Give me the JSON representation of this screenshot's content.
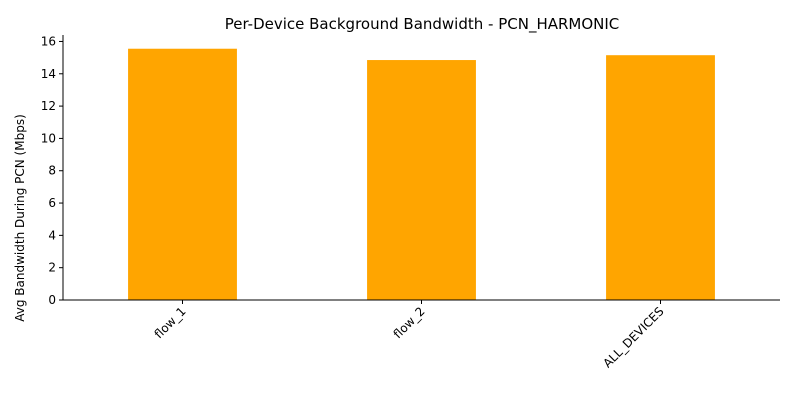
{
  "chart_data": {
    "type": "bar",
    "title": "Per-Device Background Bandwidth - PCN_HARMONIC",
    "xlabel": "",
    "ylabel": "Avg Bandwidth During PCN (Mbps)",
    "categories": [
      "flow_1",
      "flow_2",
      "ALL_DEVICES"
    ],
    "values": [
      15.55,
      14.85,
      15.15
    ],
    "ylim": [
      0,
      16.4
    ],
    "yticks": [
      0,
      2,
      4,
      6,
      8,
      10,
      12,
      14,
      16
    ],
    "xtick_rotation": 45,
    "grid": false,
    "legend": "none",
    "bar_color": "#ffa500"
  }
}
